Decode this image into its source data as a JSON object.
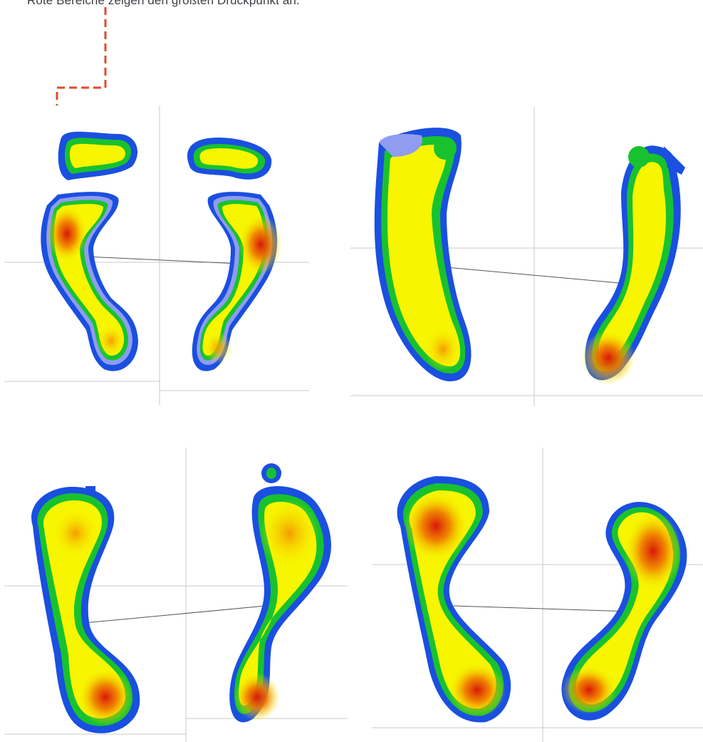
{
  "caption": "Rote Bereiche zeigen den größten Druckpunkt an.",
  "colors": {
    "accent_leader": "#e2492a",
    "heat_outer": "#1a4fe0",
    "heat_light_blue": "#8f9cf0",
    "heat_green": "#18c22e",
    "heat_yellow": "#f7f500",
    "heat_orange": "#f59a00",
    "heat_red": "#d8180a",
    "guide_line": "#c9c9c9"
  },
  "icons": [
    "pressure-heatmap-footprint"
  ],
  "panels": [
    {
      "name": "pressure-panel-top-left",
      "feet": [
        "left-foot",
        "right-foot"
      ]
    },
    {
      "name": "pressure-panel-top-right",
      "feet": [
        "left-foot",
        "right-foot"
      ]
    },
    {
      "name": "pressure-panel-bottom-left",
      "feet": [
        "left-foot",
        "right-foot"
      ]
    },
    {
      "name": "pressure-panel-bottom-right",
      "feet": [
        "left-foot",
        "right-foot"
      ]
    }
  ]
}
